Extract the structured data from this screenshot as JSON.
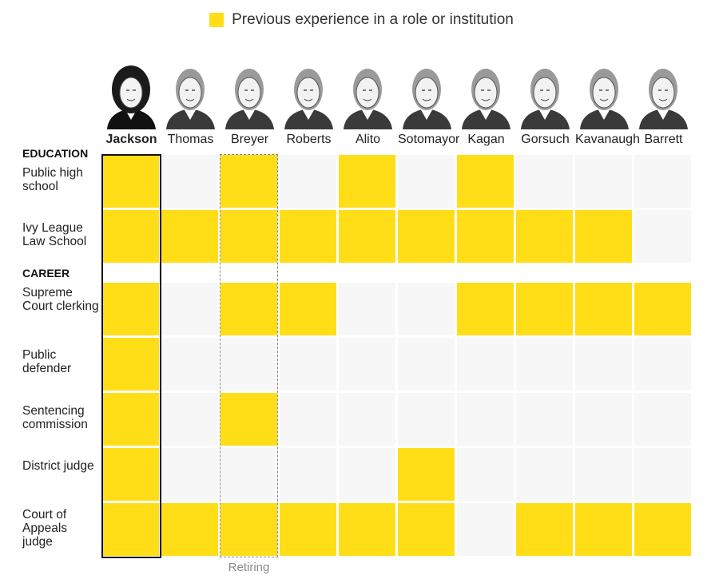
{
  "legend": {
    "label": "Previous experience in a role or institution",
    "color": "#FFDE17"
  },
  "colors": {
    "on": "#FFDE17",
    "off": "#F7F7F7",
    "highlight_border": "#111111",
    "retiring_border": "#888888"
  },
  "retiring_label": "Retiring",
  "chart_data": {
    "type": "heatmap",
    "title": "",
    "columns": [
      "Jackson",
      "Thomas",
      "Breyer",
      "Roberts",
      "Alito",
      "Sotomayor",
      "Kagan",
      "Gorsuch",
      "Kavanaugh",
      "Barrett"
    ],
    "highlighted_column": "Jackson",
    "retiring_column": "Breyer",
    "sections": [
      {
        "label": "EDUCATION",
        "rows": [
          {
            "label": "Public high school",
            "values": [
              1,
              0,
              1,
              0,
              1,
              0,
              1,
              0,
              0,
              0
            ]
          },
          {
            "label": "Ivy League Law School",
            "values": [
              1,
              1,
              1,
              1,
              1,
              1,
              1,
              1,
              1,
              0
            ]
          }
        ]
      },
      {
        "label": "CAREER",
        "rows": [
          {
            "label": "Supreme Court clerking",
            "values": [
              1,
              0,
              1,
              1,
              0,
              0,
              1,
              1,
              1,
              1
            ]
          },
          {
            "label": "Public defender",
            "values": [
              1,
              0,
              0,
              0,
              0,
              0,
              0,
              0,
              0,
              0
            ]
          },
          {
            "label": "Sentencing commission",
            "values": [
              1,
              0,
              1,
              0,
              0,
              0,
              0,
              0,
              0,
              0
            ]
          },
          {
            "label": "District judge",
            "values": [
              1,
              0,
              0,
              0,
              0,
              1,
              0,
              0,
              0,
              0
            ]
          },
          {
            "label": "Court of Appeals judge",
            "values": [
              1,
              1,
              1,
              1,
              1,
              1,
              0,
              1,
              1,
              1
            ]
          }
        ]
      }
    ]
  }
}
